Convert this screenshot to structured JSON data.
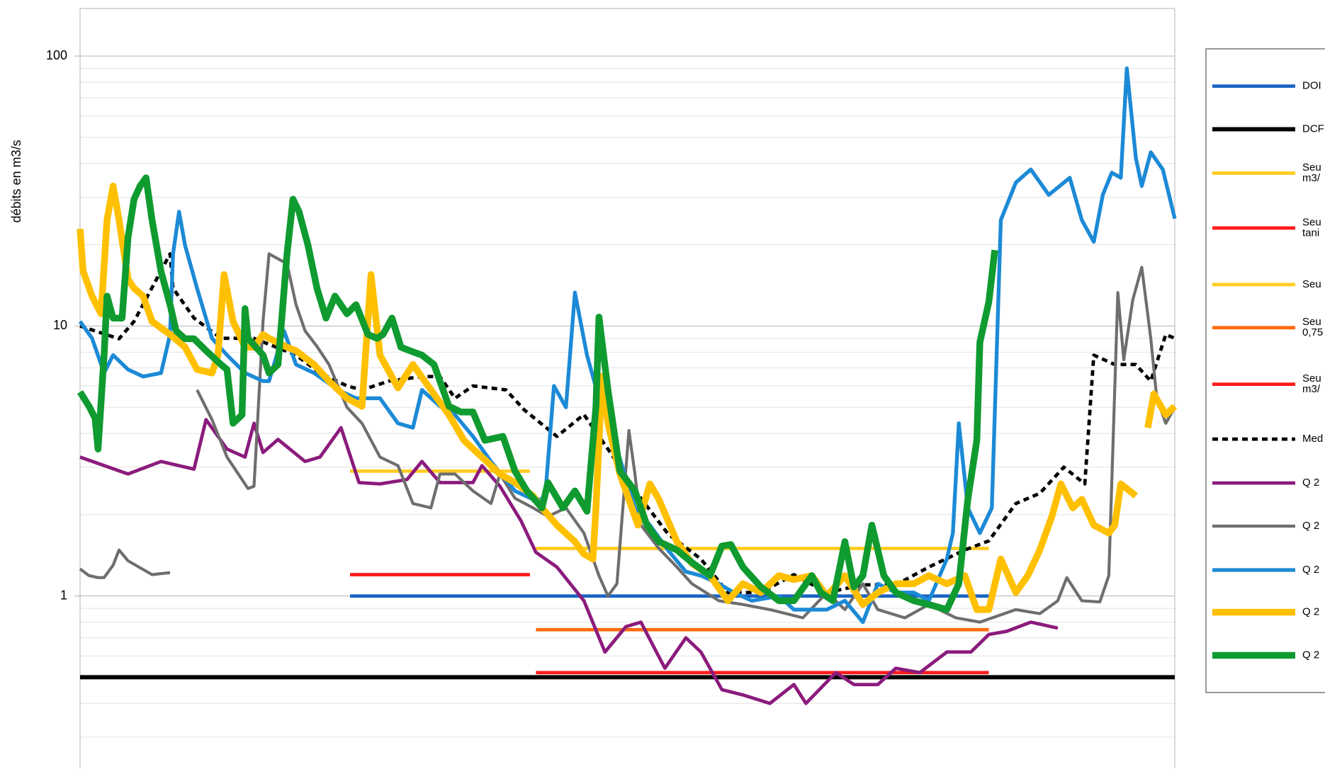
{
  "chart_data": {
    "type": "line",
    "y_label": "débits en m3/s",
    "log_scale": true,
    "grid": true,
    "xlim": [
      0,
      365
    ],
    "ylim": [
      0.23,
      150
    ],
    "yticks": [
      1,
      10,
      100
    ],
    "minor_yticks": [
      0.3,
      0.4,
      0.5,
      0.6,
      0.7,
      0.8,
      0.9,
      2,
      3,
      4,
      5,
      6,
      7,
      8,
      9,
      20,
      30,
      40,
      50,
      60,
      70,
      80,
      90
    ],
    "series": [
      {
        "name": "DOI",
        "color": "#1a64c4",
        "width": 4,
        "x": [
          90,
          303
        ],
        "values": [
          1,
          1
        ]
      },
      {
        "name": "DCF",
        "color": "#000000",
        "width": 5,
        "x": [
          0,
          365
        ],
        "values": [
          0.5,
          0.5
        ]
      },
      {
        "name": "Seu\nm3/",
        "color": "#ffcc22",
        "width": 4,
        "x": [
          90,
          150
        ],
        "values": [
          2.9,
          2.9
        ]
      },
      {
        "name": "Seu\ntani",
        "color": "#ff1a1a",
        "width": 4,
        "x": [
          90,
          150
        ],
        "values": [
          1.2,
          1.2
        ]
      },
      {
        "name": "Seu",
        "color": "#ffcc22",
        "width": 4,
        "x": [
          152,
          303
        ],
        "values": [
          1.5,
          1.5
        ]
      },
      {
        "name": "Seu\n0,75",
        "color": "#ff6a10",
        "width": 4,
        "x": [
          152,
          303
        ],
        "values": [
          0.75,
          0.75
        ]
      },
      {
        "name": "Seu\nm3/",
        "color": "#ff1a1a",
        "width": 4,
        "x": [
          152,
          303
        ],
        "values": [
          0.52,
          0.52
        ]
      },
      {
        "name": "Med",
        "color": "#000000",
        "width": 4,
        "dashed": true,
        "x": [
          0,
          13,
          18,
          30,
          31,
          38,
          47,
          58,
          72,
          80,
          89,
          94,
          103,
          114,
          120,
          125,
          131,
          142,
          148,
          159,
          168,
          176,
          187,
          196,
          207,
          216,
          227,
          238,
          249,
          261,
          272,
          283,
          295,
          303,
          312,
          320,
          328,
          335,
          338,
          345,
          352,
          357,
          362,
          365
        ],
        "values": [
          10,
          8.97,
          10.4,
          18.5,
          13.8,
          10.7,
          9.0,
          9.0,
          7.8,
          6.7,
          6.0,
          5.8,
          6.25,
          6.5,
          6.5,
          5.4,
          6.0,
          5.8,
          4.9,
          3.9,
          4.7,
          3.5,
          2.3,
          1.7,
          1.37,
          1.03,
          1.03,
          1.2,
          1.03,
          1.1,
          1.1,
          1.28,
          1.48,
          1.6,
          2.2,
          2.4,
          3.0,
          2.6,
          7.8,
          7.2,
          7.2,
          6.25,
          9.3,
          9.0
        ]
      },
      {
        "name": "Q 2",
        "color": "#8b1b7d",
        "width": 4,
        "x": [
          0,
          16,
          27,
          38,
          42,
          49,
          55,
          58,
          61,
          66,
          75,
          80,
          87,
          93,
          100,
          109,
          114,
          120,
          125,
          131,
          134,
          140,
          147,
          152,
          159,
          168,
          175,
          182,
          187,
          195,
          202,
          207,
          214,
          221,
          230,
          238,
          242,
          252,
          258,
          266,
          272,
          280,
          289,
          297,
          303,
          309,
          317,
          326
        ],
        "values": [
          3.27,
          2.83,
          3.15,
          2.95,
          4.5,
          3.5,
          3.27,
          4.36,
          3.4,
          3.8,
          3.15,
          3.27,
          4.2,
          2.63,
          2.6,
          2.7,
          3.15,
          2.63,
          2.63,
          2.63,
          3.04,
          2.55,
          1.9,
          1.45,
          1.28,
          0.96,
          0.62,
          0.77,
          0.8,
          0.54,
          0.7,
          0.62,
          0.45,
          0.43,
          0.4,
          0.47,
          0.4,
          0.52,
          0.47,
          0.47,
          0.54,
          0.52,
          0.62,
          0.62,
          0.72,
          0.74,
          0.8,
          0.76
        ]
      },
      {
        "name": "Q 2",
        "color": "#6e6e6e",
        "width": 3.5,
        "x": [
          0,
          3,
          6,
          8,
          11,
          13,
          16,
          24,
          30,
          34,
          39,
          44,
          49,
          56,
          58,
          61,
          63,
          69,
          72,
          75,
          79,
          83,
          89,
          94,
          100,
          106,
          111,
          117,
          120,
          125,
          131,
          137,
          140,
          145,
          151,
          156,
          162,
          168,
          173,
          176,
          179,
          183,
          185,
          187,
          193,
          199,
          204,
          213,
          221,
          230,
          241,
          249,
          255,
          261,
          266,
          275,
          283,
          292,
          300,
          312,
          320,
          326,
          329,
          334,
          340,
          343,
          346,
          348,
          351,
          354,
          357,
          359,
          362,
          365
        ],
        "values": [
          1.26,
          1.19,
          1.17,
          1.17,
          1.3,
          1.48,
          1.35,
          1.2,
          1.22,
          null,
          5.8,
          4.5,
          3.27,
          2.5,
          2.55,
          10.4,
          18.5,
          17,
          12,
          9.6,
          8.4,
          7.2,
          5.0,
          4.36,
          3.27,
          3.04,
          2.2,
          2.12,
          2.83,
          2.83,
          2.45,
          2.2,
          2.83,
          2.3,
          2.12,
          1.97,
          2.12,
          1.71,
          1.19,
          1.0,
          1.11,
          4.1,
          2.83,
          1.83,
          1.5,
          1.28,
          1.11,
          0.96,
          0.93,
          0.89,
          0.83,
          1.03,
          0.89,
          1.11,
          0.89,
          0.83,
          0.93,
          0.83,
          0.8,
          0.89,
          0.86,
          0.96,
          1.17,
          0.96,
          0.95,
          1.19,
          13.3,
          7.5,
          12.5,
          16.5,
          9.0,
          5.4,
          4.36,
          5.0
        ]
      },
      {
        "name": "Q 2",
        "color": "#1c8ad6",
        "width": 4.5,
        "x": [
          0,
          4,
          8,
          11,
          16,
          21,
          27,
          30,
          31,
          33,
          35,
          39,
          44,
          49,
          55,
          61,
          63,
          68,
          72,
          78,
          86,
          92,
          100,
          106,
          111,
          114,
          120,
          125,
          131,
          137,
          145,
          151,
          155,
          158,
          162,
          165,
          169,
          173,
          179,
          185,
          190,
          196,
          202,
          207,
          213,
          218,
          224,
          233,
          238,
          249,
          255,
          261,
          266,
          272,
          278,
          283,
          289,
          291,
          293,
          296,
          300,
          304,
          307,
          312,
          317,
          323,
          330,
          334,
          338,
          341,
          344,
          347,
          349,
          352,
          354,
          357,
          361,
          365
        ],
        "values": [
          10.4,
          9.0,
          6.7,
          7.8,
          6.9,
          6.5,
          6.7,
          9.3,
          18.5,
          26.5,
          19.9,
          13.8,
          9.0,
          7.8,
          6.7,
          6.25,
          6.25,
          9.6,
          7.2,
          6.7,
          5.8,
          5.4,
          5.4,
          4.36,
          4.2,
          5.8,
          5.04,
          4.69,
          3.9,
          3.15,
          2.45,
          2.28,
          2.28,
          6.0,
          5.0,
          13.3,
          7.8,
          5.4,
          3.5,
          2.12,
          1.83,
          1.48,
          1.23,
          1.19,
          1.11,
          1.03,
          0.96,
          1.0,
          0.89,
          0.89,
          0.96,
          0.8,
          1.11,
          1.03,
          1.03,
          0.96,
          1.37,
          1.71,
          4.36,
          2.12,
          1.71,
          2.12,
          24.7,
          34,
          38,
          30.6,
          35.4,
          24.7,
          20.5,
          30.6,
          37,
          35.4,
          90,
          42,
          33,
          44,
          38,
          25
        ]
      },
      {
        "name": "Q 2",
        "color": "#ffc000",
        "width": 8,
        "x": [
          0,
          1,
          4,
          7,
          9,
          11,
          13,
          16,
          18,
          21,
          24,
          30,
          35,
          39,
          44,
          46,
          48,
          51,
          55,
          58,
          61,
          63,
          69,
          72,
          78,
          83,
          89,
          94,
          97,
          100,
          106,
          111,
          117,
          123,
          128,
          134,
          140,
          145,
          151,
          154,
          159,
          165,
          168,
          171,
          172,
          174,
          176,
          180,
          186,
          190,
          193,
          199,
          204,
          210,
          216,
          221,
          227,
          233,
          238,
          244,
          249,
          255,
          261,
          266,
          272,
          278,
          283,
          289,
          295,
          299,
          303,
          307,
          312,
          316,
          320,
          324,
          327,
          331,
          334,
          338,
          343,
          345,
          347,
          351,
          352,
          354,
          356,
          358,
          362,
          365
        ],
        "values": [
          22.9,
          16,
          12.9,
          11.1,
          24.7,
          33,
          24.7,
          14.9,
          13.8,
          12.9,
          10.4,
          9.3,
          8.35,
          6.9,
          6.7,
          7.8,
          15.5,
          10.4,
          8.35,
          8.35,
          9.3,
          9.0,
          8.35,
          8.1,
          7.2,
          6.25,
          5.4,
          5.04,
          15.5,
          7.8,
          5.9,
          7.2,
          5.8,
          4.69,
          3.77,
          3.27,
          2.83,
          2.63,
          2.35,
          2.12,
          1.83,
          1.59,
          1.43,
          1.37,
          2.12,
          6.5,
          4.36,
          2.83,
          1.83,
          2.6,
          2.28,
          1.59,
          1.32,
          1.19,
          0.96,
          1.11,
          1.03,
          1.19,
          1.15,
          1.19,
          1.0,
          1.19,
          0.93,
          1.03,
          1.11,
          1.11,
          1.19,
          1.11,
          1.19,
          0.89,
          0.89,
          1.37,
          1.03,
          1.19,
          1.48,
          1.97,
          2.6,
          2.12,
          2.28,
          1.83,
          1.71,
          1.83,
          2.6,
          2.4,
          2.35,
          null,
          4.2,
          5.6,
          4.69,
          5.04
        ]
      },
      {
        "name": "Q 2",
        "color": "#0f9b30",
        "width": 8,
        "x": [
          0,
          3,
          5,
          6,
          8,
          9,
          11,
          14,
          16,
          18,
          20,
          22,
          24,
          27,
          30,
          32,
          35,
          38,
          42,
          47,
          49,
          51,
          54,
          55,
          56,
          61,
          63,
          66,
          69,
          71,
          73,
          76,
          79,
          82,
          85,
          89,
          92,
          96,
          99,
          101,
          104,
          107,
          110,
          114,
          118,
          123,
          127,
          131,
          135,
          141,
          145,
          149,
          154,
          156,
          161,
          165,
          169,
          172,
          173,
          176,
          180,
          185,
          189,
          193,
          199,
          204,
          210,
          214,
          217,
          221,
          227,
          233,
          238,
          244,
          247,
          251,
          255,
          258,
          261,
          264,
          268,
          272,
          278,
          283,
          289,
          293,
          296,
          299,
          300,
          303,
          305
        ],
        "values": [
          5.7,
          5.04,
          4.55,
          3.5,
          7.8,
          12.9,
          10.7,
          10.7,
          21.3,
          29.5,
          33,
          35.4,
          24.7,
          15.9,
          12.0,
          9.6,
          8.97,
          8.97,
          8.1,
          7.2,
          6.9,
          4.36,
          4.69,
          11.6,
          9.0,
          7.8,
          6.7,
          7.2,
          18.5,
          29.5,
          26.5,
          19.9,
          13.8,
          10.7,
          12.9,
          11.1,
          12.0,
          9.3,
          9.0,
          9.3,
          10.7,
          8.35,
          8.1,
          7.8,
          7.2,
          5.04,
          4.8,
          4.8,
          3.77,
          3.9,
          2.9,
          2.45,
          2.12,
          2.63,
          2.12,
          2.45,
          2.06,
          5.04,
          10.8,
          5.8,
          2.9,
          2.45,
          1.83,
          1.59,
          1.48,
          1.33,
          1.19,
          1.53,
          1.55,
          1.28,
          1.08,
          0.96,
          0.96,
          1.19,
          1.03,
          0.96,
          1.59,
          1.08,
          1.19,
          1.83,
          1.19,
          1.03,
          0.96,
          0.93,
          0.89,
          1.11,
          2.28,
          3.77,
          8.7,
          12.3,
          19.1
        ]
      }
    ]
  }
}
